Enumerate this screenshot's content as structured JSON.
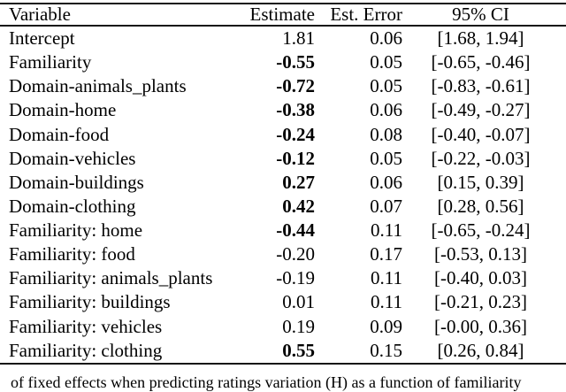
{
  "table": {
    "columns": [
      "Variable",
      "Estimate",
      "Est. Error",
      "95% CI"
    ],
    "rows": [
      {
        "variable": "Intercept",
        "estimate": "1.81",
        "bold": false,
        "est_error": "0.06",
        "ci": "[1.68, 1.94]"
      },
      {
        "variable": "Familiarity",
        "estimate": "-0.55",
        "bold": true,
        "est_error": "0.05",
        "ci": "[-0.65, -0.46]"
      },
      {
        "variable": "Domain-animals_plants",
        "estimate": "-0.72",
        "bold": true,
        "est_error": "0.05",
        "ci": "[-0.83, -0.61]"
      },
      {
        "variable": "Domain-home",
        "estimate": "-0.38",
        "bold": true,
        "est_error": "0.06",
        "ci": "[-0.49, -0.27]"
      },
      {
        "variable": "Domain-food",
        "estimate": "-0.24",
        "bold": true,
        "est_error": "0.08",
        "ci": "[-0.40, -0.07]"
      },
      {
        "variable": "Domain-vehicles",
        "estimate": "-0.12",
        "bold": true,
        "est_error": "0.05",
        "ci": "[-0.22, -0.03]"
      },
      {
        "variable": "Domain-buildings",
        "estimate": "0.27",
        "bold": true,
        "est_error": "0.06",
        "ci": "[0.15, 0.39]"
      },
      {
        "variable": "Domain-clothing",
        "estimate": "0.42",
        "bold": true,
        "est_error": "0.07",
        "ci": "[0.28, 0.56]"
      },
      {
        "variable": "Familiarity: home",
        "estimate": "-0.44",
        "bold": true,
        "est_error": "0.11",
        "ci": "[-0.65, -0.24]"
      },
      {
        "variable": "Familiarity: food",
        "estimate": "-0.20",
        "bold": false,
        "est_error": "0.17",
        "ci": "[-0.53, 0.13]"
      },
      {
        "variable": "Familiarity: animals_plants",
        "estimate": "-0.19",
        "bold": false,
        "est_error": "0.11",
        "ci": "[-0.40, 0.03]"
      },
      {
        "variable": "Familiarity: buildings",
        "estimate": "0.01",
        "bold": false,
        "est_error": "0.11",
        "ci": "[-0.21, 0.23]"
      },
      {
        "variable": "Familiarity: vehicles",
        "estimate": "0.19",
        "bold": false,
        "est_error": "0.09",
        "ci": "[-0.00, 0.36]"
      },
      {
        "variable": "Familiarity: clothing",
        "estimate": "0.55",
        "bold": true,
        "est_error": "0.15",
        "ci": "[0.26, 0.84]"
      }
    ]
  },
  "caption_fragment": "of fixed effects when predicting ratings variation (H) as a function of familiarity"
}
